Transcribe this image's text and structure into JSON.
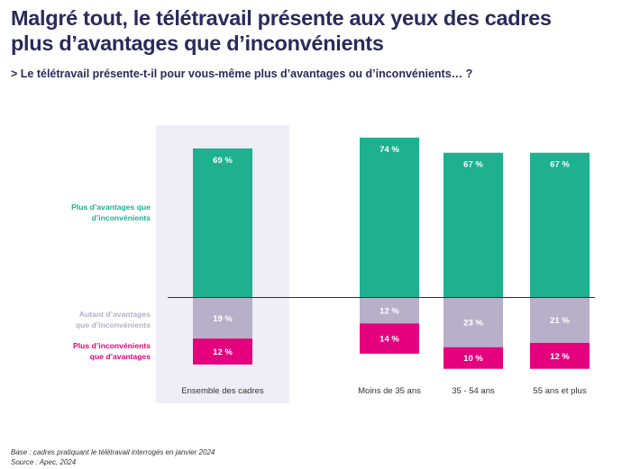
{
  "title_line1": "Malgré tout, le télétravail présente aux yeux des cadres",
  "title_line2": "plus d’avantages que d’inconvénients",
  "subtitle": "> Le télétravail présente-t-il pour vous-même plus d’avantages ou d’inconvénients… ?",
  "source_line1": "Base : cadres pratiquant le télétravail interrogés en janvier 2024",
  "source_line2": "Source : Apec, 2024",
  "colors": {
    "advantages": "#1eb08f",
    "equal": "#b8afc9",
    "disadvantages": "#e5007d",
    "highlight_bg": "#efeef6",
    "title": "#2b2a5b"
  },
  "chart_data": {
    "type": "bar",
    "stacked": "diverging",
    "categories": [
      "Ensemble des cadres",
      "Moins de 35 ans",
      "35 - 54 ans",
      "55 ans et plus"
    ],
    "highlighted_category": "Ensemble des cadres",
    "value_suffix": " %",
    "series": [
      {
        "name": "Plus d’avantages que d’inconvénients",
        "name_lines": [
          "Plus d’avantages que",
          "d’inconvénients"
        ],
        "values": [
          69,
          74,
          67,
          67
        ],
        "direction": "up"
      },
      {
        "name": "Autant d’avantages que d’inconvénients",
        "name_lines": [
          "Autant d’avantages",
          "que d’inconvénients"
        ],
        "values": [
          19,
          12,
          23,
          21
        ],
        "direction": "down"
      },
      {
        "name": "Plus d’inconvénients que d’avantages",
        "name_lines": [
          "Plus d’inconvénients",
          "que d’avantages"
        ],
        "values": [
          12,
          14,
          10,
          12
        ],
        "direction": "down"
      }
    ]
  }
}
